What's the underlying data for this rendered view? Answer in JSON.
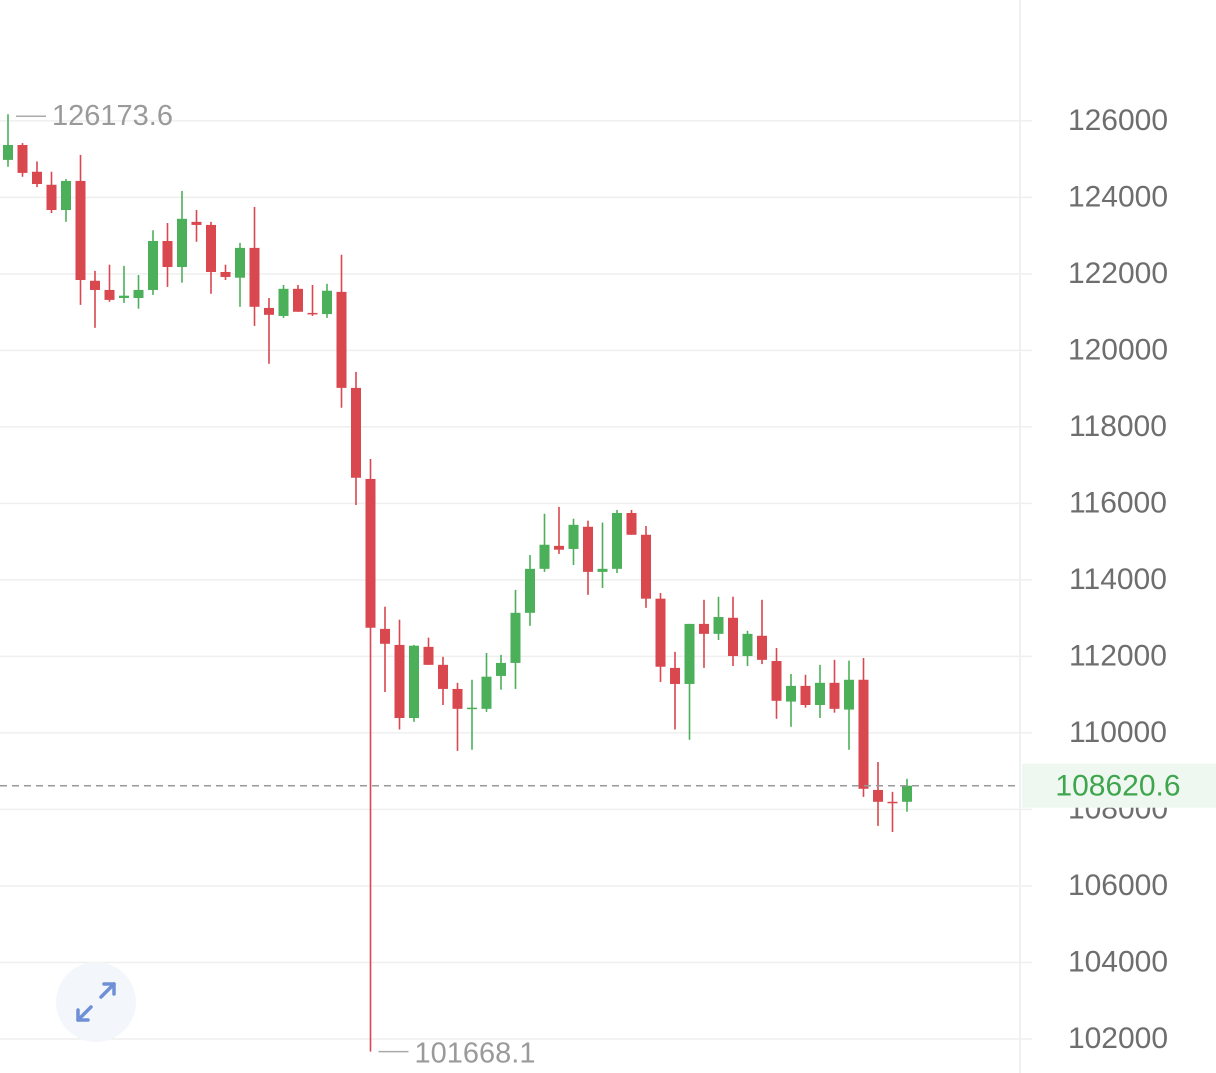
{
  "chart_data": {
    "type": "candlestick",
    "open": [
      124980,
      125370,
      124670,
      124330,
      123670,
      124430,
      121820,
      121580,
      121370,
      121370,
      121580,
      122860,
      122180,
      123360,
      123280,
      122050,
      121900,
      122680,
      121110,
      120900,
      121610,
      120980,
      120950,
      121530,
      119020,
      116640,
      112720,
      112300,
      110390,
      112250,
      111780,
      111150,
      110630,
      110630,
      111490,
      111830,
      113140,
      114290,
      114890,
      114810,
      115390,
      114210,
      114290,
      115750,
      115180,
      113510,
      111700,
      111280,
      112850,
      112590,
      113010,
      112010,
      112540,
      111880,
      110820,
      111230,
      110730,
      111310,
      110610,
      111390,
      108510,
      108200,
      108200
    ],
    "high": [
      126173.6,
      125420,
      124940,
      124670,
      124480,
      125110,
      122080,
      122240,
      122210,
      121970,
      123140,
      123330,
      124170,
      123670,
      123360,
      122240,
      122810,
      123750,
      121370,
      121710,
      121710,
      121710,
      121740,
      122500,
      119440,
      117160,
      113300,
      112960,
      112300,
      112490,
      111990,
      111310,
      111390,
      112090,
      112040,
      113740,
      114650,
      115730,
      115910,
      115600,
      115550,
      115500,
      115830,
      115830,
      115410,
      113660,
      112120,
      112850,
      113480,
      113560,
      113560,
      112670,
      113480,
      112220,
      111540,
      111520,
      111780,
      111910,
      111890,
      111960,
      109240,
      108460,
      108800
    ],
    "low": [
      124800,
      124540,
      124270,
      123590,
      123360,
      121190,
      120590,
      121270,
      121240,
      121090,
      121450,
      121660,
      121770,
      122840,
      121480,
      121840,
      121140,
      120640,
      119650,
      120850,
      121010,
      120900,
      120850,
      118500,
      115960,
      101668.1,
      111070,
      110090,
      110290,
      111780,
      110730,
      109530,
      109560,
      110550,
      111130,
      111150,
      112800,
      114210,
      114680,
      114390,
      113610,
      113790,
      114180,
      115180,
      113270,
      111330,
      110090,
      109820,
      111700,
      112430,
      111750,
      111750,
      111800,
      110370,
      110160,
      110660,
      110390,
      110530,
      109560,
      108330,
      107570,
      107410,
      107940
    ],
    "close": [
      125370,
      124640,
      124350,
      123670,
      124430,
      121840,
      121580,
      121320,
      121430,
      121580,
      122860,
      122180,
      123440,
      123280,
      122050,
      121920,
      122680,
      121140,
      120930,
      121610,
      121010,
      120950,
      121560,
      119020,
      116670,
      112750,
      112330,
      110390,
      112280,
      111780,
      111150,
      110630,
      110660,
      111470,
      111830,
      113140,
      114290,
      114920,
      114790,
      115440,
      114210,
      114290,
      115750,
      115180,
      113510,
      111730,
      111280,
      112850,
      112590,
      113030,
      112010,
      112590,
      111910,
      110840,
      111230,
      110730,
      111310,
      110630,
      111390,
      108540,
      108200,
      108190,
      108620.6
    ],
    "up_color": "#4caf5a",
    "down_color": "#d9474f",
    "ylim": [
      101110,
      129160
    ],
    "yticks": [
      102000,
      104000,
      106000,
      108000,
      110000,
      112000,
      114000,
      116000,
      118000,
      120000,
      122000,
      124000,
      126000
    ],
    "grid": true
  }
}
